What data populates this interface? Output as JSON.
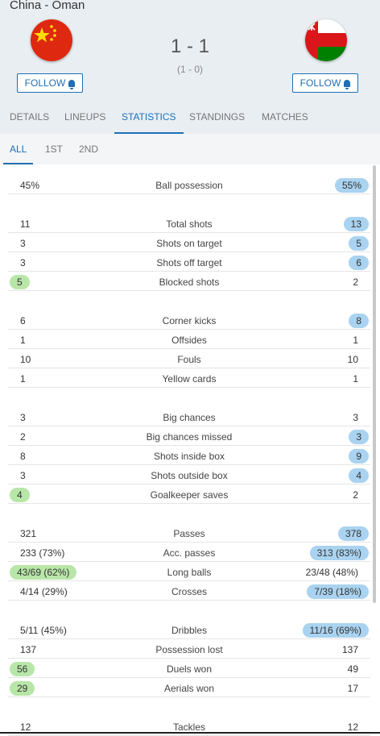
{
  "match": {
    "title": "China - Oman",
    "score": "1 - 1",
    "halftime": "(1 - 0)"
  },
  "follow": {
    "home_label": "FOLLOW",
    "away_label": "FOLLOW"
  },
  "tabs": [
    "DETAILS",
    "LINEUPS",
    "STATISTICS",
    "STANDINGS",
    "MATCHES"
  ],
  "subtabs": [
    "ALL",
    "1ST",
    "2ND"
  ],
  "stats": [
    {
      "label": "Ball possession",
      "home": "45%",
      "away": "55%",
      "win": "away"
    },
    {
      "label": "Total shots",
      "home": "11",
      "away": "13",
      "win": "away"
    },
    {
      "label": "Shots on target",
      "home": "3",
      "away": "5",
      "win": "away"
    },
    {
      "label": "Shots off target",
      "home": "3",
      "away": "6",
      "win": "away"
    },
    {
      "label": "Blocked shots",
      "home": "5",
      "away": "2",
      "win": "home"
    },
    {
      "label": "Corner kicks",
      "home": "6",
      "away": "8",
      "win": "away"
    },
    {
      "label": "Offsides",
      "home": "1",
      "away": "1",
      "win": ""
    },
    {
      "label": "Fouls",
      "home": "10",
      "away": "10",
      "win": ""
    },
    {
      "label": "Yellow cards",
      "home": "1",
      "away": "1",
      "win": ""
    },
    {
      "label": "Big chances",
      "home": "3",
      "away": "3",
      "win": ""
    },
    {
      "label": "Big chances missed",
      "home": "2",
      "away": "3",
      "win": "away"
    },
    {
      "label": "Shots inside box",
      "home": "8",
      "away": "9",
      "win": "away"
    },
    {
      "label": "Shots outside box",
      "home": "3",
      "away": "4",
      "win": "away"
    },
    {
      "label": "Goalkeeper saves",
      "home": "4",
      "away": "2",
      "win": "home"
    },
    {
      "label": "Passes",
      "home": "321",
      "away": "378",
      "win": "away"
    },
    {
      "label": "Acc. passes",
      "home": "233 (73%)",
      "away": "313 (83%)",
      "win": "away"
    },
    {
      "label": "Long balls",
      "home": "43/69 (62%)",
      "away": "23/48 (48%)",
      "win": "home"
    },
    {
      "label": "Crosses",
      "home": "4/14 (29%)",
      "away": "7/39 (18%)",
      "win": "away"
    },
    {
      "label": "Dribbles",
      "home": "5/11 (45%)",
      "away": "11/16 (69%)",
      "win": "away"
    },
    {
      "label": "Possession lost",
      "home": "137",
      "away": "137",
      "win": ""
    },
    {
      "label": "Duels won",
      "home": "56",
      "away": "49",
      "win": "home"
    },
    {
      "label": "Aerials won",
      "home": "29",
      "away": "17",
      "win": "home"
    },
    {
      "label": "Tackles",
      "home": "12",
      "away": "12",
      "win": ""
    }
  ],
  "colors": {
    "accent": "#1e6fb3",
    "home_highlight": "#b8e6a8",
    "away_highlight": "#a9d3f0",
    "header_bg": "#e9eef3"
  }
}
